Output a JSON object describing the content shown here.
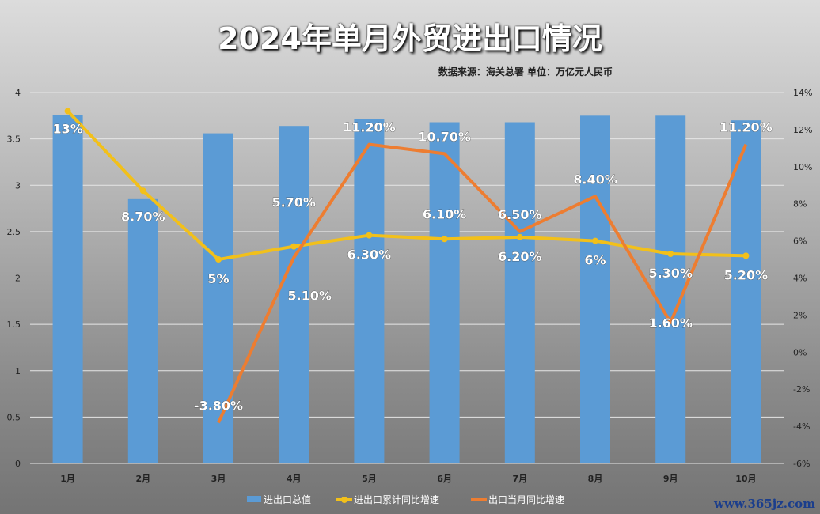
{
  "chart_data": {
    "type": "bar+line",
    "title": "2024年单月外贸进出口情况",
    "subtitle": "数据来源：海关总署 单位：万亿元人民币",
    "categories": [
      "1月",
      "2月",
      "3月",
      "4月",
      "5月",
      "6月",
      "7月",
      "8月",
      "9月",
      "10月"
    ],
    "y_left": {
      "ylim": [
        0,
        4
      ],
      "ticks": [
        "0",
        "0.5",
        "1",
        "1.5",
        "2",
        "2.5",
        "3",
        "3.5",
        "4"
      ]
    },
    "y_right": {
      "ylim": [
        -6,
        14
      ],
      "ticks": [
        "-6%",
        "-4%",
        "-2%",
        "0%",
        "2%",
        "4%",
        "6%",
        "8%",
        "10%",
        "12%",
        "14%"
      ]
    },
    "grid": true,
    "legend_position": "bottom",
    "series": [
      {
        "name": "进出口总值",
        "type": "bar",
        "axis": "left",
        "color": "#5b9bd5",
        "values": [
          3.76,
          2.85,
          3.56,
          3.64,
          3.71,
          3.68,
          3.68,
          3.75,
          3.75,
          3.7
        ]
      },
      {
        "name": "进出口累计同比增速",
        "type": "line",
        "axis": "right",
        "color": "#f2c01a",
        "values": [
          13,
          8.7,
          5,
          5.7,
          6.3,
          6.1,
          6.2,
          6,
          5.3,
          5.2
        ],
        "labels": [
          "13%",
          "8.70%",
          "5%",
          "5.70%",
          "6.30%",
          "6.10%",
          "6.20%",
          "6%",
          "5.30%",
          "5.20%"
        ]
      },
      {
        "name": "出口当月同比增速",
        "type": "line",
        "axis": "right",
        "color": "#ed7d31",
        "values": [
          null,
          null,
          -3.8,
          5.1,
          11.2,
          10.7,
          6.5,
          8.4,
          1.6,
          11.2
        ],
        "labels": [
          null,
          null,
          "-3.80%",
          "5.10%",
          "11.20%",
          "10.70%",
          "6.50%",
          "8.40%",
          "1.60%",
          "11.20%"
        ]
      }
    ]
  },
  "watermark": "www.365jz.com"
}
